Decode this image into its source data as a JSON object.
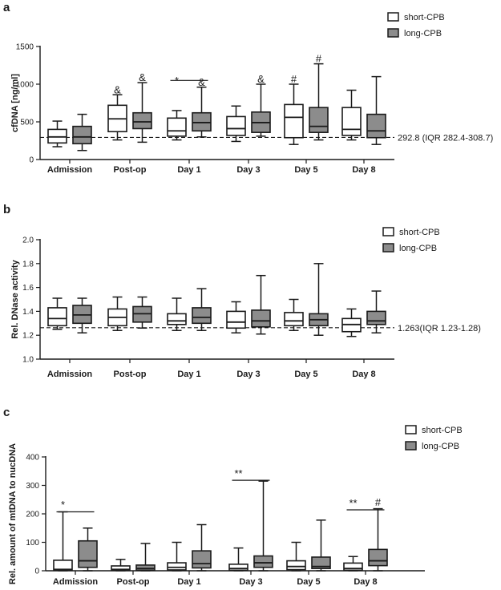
{
  "chart_data": [
    {
      "panel": "a",
      "type": "box",
      "ylabel": "cfDNA [ng/ml]",
      "ylim": [
        0,
        1500
      ],
      "yticks": [
        0,
        500,
        1000,
        1500
      ],
      "categories": [
        "Admission",
        "Post-op",
        "Day 1",
        "Day 3",
        "Day 5",
        "Day 8"
      ],
      "legend": [
        "short-CPB",
        "long-CPB"
      ],
      "reference_line": {
        "value": 292.8,
        "label": "292.8 (IQR 282.4-308.7)"
      },
      "series": [
        {
          "name": "short-CPB",
          "color": "#ffffff",
          "boxes": [
            {
              "min": 170,
              "q1": 220,
              "median": 300,
              "q3": 400,
              "max": 510
            },
            {
              "min": 260,
              "q1": 370,
              "median": 540,
              "q3": 720,
              "max": 860
            },
            {
              "min": 260,
              "q1": 310,
              "median": 380,
              "q3": 550,
              "max": 650
            },
            {
              "min": 240,
              "q1": 320,
              "median": 410,
              "q3": 570,
              "max": 710
            },
            {
              "min": 200,
              "q1": 290,
              "median": 560,
              "q3": 730,
              "max": 1000
            },
            {
              "min": 260,
              "q1": 320,
              "median": 400,
              "q3": 690,
              "max": 920
            }
          ]
        },
        {
          "name": "long-CPB",
          "color": "#8c8c8c",
          "boxes": [
            {
              "min": 120,
              "q1": 210,
              "median": 300,
              "q3": 440,
              "max": 600
            },
            {
              "min": 230,
              "q1": 410,
              "median": 500,
              "q3": 620,
              "max": 1020
            },
            {
              "min": 300,
              "q1": 380,
              "median": 490,
              "q3": 620,
              "max": 960
            },
            {
              "min": 310,
              "q1": 360,
              "median": 490,
              "q3": 630,
              "max": 1000
            },
            {
              "min": 260,
              "q1": 360,
              "median": 440,
              "q3": 690,
              "max": 1270
            },
            {
              "min": 200,
              "q1": 290,
              "median": 380,
              "q3": 600,
              "max": 1100
            }
          ]
        }
      ],
      "annotations": [
        {
          "text": "&",
          "category": 1,
          "series": 0,
          "value": 880
        },
        {
          "text": "&",
          "category": 1,
          "series": 1,
          "value": 1040
        },
        {
          "text": "*",
          "category": 2,
          "series": 0,
          "value": 1000
        },
        {
          "text": "&",
          "category": 2,
          "series": 1,
          "value": 980
        },
        {
          "text": "&",
          "category": 3,
          "series": 1,
          "value": 1020
        },
        {
          "text": "#",
          "category": 4,
          "series": 0,
          "value": 1020
        },
        {
          "text": "#",
          "category": 4,
          "series": 1,
          "value": 1290
        }
      ],
      "brackets": [
        {
          "category_from": 2,
          "series_from": 0,
          "category_to": 2,
          "series_to": 1,
          "value": 1050
        }
      ]
    },
    {
      "panel": "b",
      "type": "box",
      "ylabel": "Rel. DNase activity",
      "ylim": [
        1.0,
        2.0
      ],
      "yticks": [
        1.0,
        1.2,
        1.4,
        1.6,
        1.8,
        2.0
      ],
      "categories": [
        "Admission",
        "Post-op",
        "Day 1",
        "Day 3",
        "Day 5",
        "Day 8"
      ],
      "legend": [
        "short-CPB",
        "long-CPB"
      ],
      "reference_line": {
        "value": 1.263,
        "label": "1.263(IQR 1.23-1.28)"
      },
      "series": [
        {
          "name": "short-CPB",
          "color": "#ffffff",
          "boxes": [
            {
              "min": 1.25,
              "q1": 1.28,
              "median": 1.34,
              "q3": 1.43,
              "max": 1.51
            },
            {
              "min": 1.24,
              "q1": 1.28,
              "median": 1.35,
              "q3": 1.42,
              "max": 1.52
            },
            {
              "min": 1.24,
              "q1": 1.29,
              "median": 1.32,
              "q3": 1.38,
              "max": 1.51
            },
            {
              "min": 1.22,
              "q1": 1.26,
              "median": 1.31,
              "q3": 1.4,
              "max": 1.48
            },
            {
              "min": 1.24,
              "q1": 1.28,
              "median": 1.32,
              "q3": 1.39,
              "max": 1.5
            },
            {
              "min": 1.19,
              "q1": 1.23,
              "median": 1.29,
              "q3": 1.34,
              "max": 1.42
            }
          ]
        },
        {
          "name": "long-CPB",
          "color": "#8c8c8c",
          "boxes": [
            {
              "min": 1.22,
              "q1": 1.3,
              "median": 1.37,
              "q3": 1.45,
              "max": 1.51
            },
            {
              "min": 1.26,
              "q1": 1.31,
              "median": 1.38,
              "q3": 1.44,
              "max": 1.52
            },
            {
              "min": 1.24,
              "q1": 1.3,
              "median": 1.35,
              "q3": 1.43,
              "max": 1.59
            },
            {
              "min": 1.21,
              "q1": 1.27,
              "median": 1.32,
              "q3": 1.41,
              "max": 1.7
            },
            {
              "min": 1.2,
              "q1": 1.28,
              "median": 1.33,
              "q3": 1.38,
              "max": 1.8
            },
            {
              "min": 1.22,
              "q1": 1.29,
              "median": 1.32,
              "q3": 1.4,
              "max": 1.57
            }
          ]
        }
      ],
      "annotations": [],
      "brackets": []
    },
    {
      "panel": "c",
      "type": "box",
      "ylabel": "Rel. amount of mtDNA to nucDNA",
      "ylim": [
        0,
        400
      ],
      "yticks": [
        0,
        100,
        200,
        300,
        400
      ],
      "categories": [
        "Admission",
        "Post-op",
        "Day 1",
        "Day 3",
        "Day 5",
        "Day 8"
      ],
      "legend": [
        "short-CPB",
        "long-CPB"
      ],
      "reference_line": null,
      "series": [
        {
          "name": "short-CPB",
          "color": "#ffffff",
          "boxes": [
            {
              "min": 0,
              "q1": 2,
              "median": 5,
              "q3": 37,
              "max": 207
            },
            {
              "min": 0,
              "q1": 2,
              "median": 5,
              "q3": 17,
              "max": 40
            },
            {
              "min": 0,
              "q1": 3,
              "median": 12,
              "q3": 28,
              "max": 100
            },
            {
              "min": 0,
              "q1": 2,
              "median": 8,
              "q3": 23,
              "max": 80
            },
            {
              "min": 0,
              "q1": 4,
              "median": 15,
              "q3": 35,
              "max": 100
            },
            {
              "min": 0,
              "q1": 2,
              "median": 8,
              "q3": 27,
              "max": 50
            }
          ]
        },
        {
          "name": "long-CPB",
          "color": "#8c8c8c",
          "boxes": [
            {
              "min": 0,
              "q1": 12,
              "median": 35,
              "q3": 105,
              "max": 150
            },
            {
              "min": 0,
              "q1": 2,
              "median": 8,
              "q3": 20,
              "max": 96
            },
            {
              "min": 0,
              "q1": 10,
              "median": 25,
              "q3": 70,
              "max": 162
            },
            {
              "min": 0,
              "q1": 12,
              "median": 28,
              "q3": 52,
              "max": 315
            },
            {
              "min": 0,
              "q1": 8,
              "median": 15,
              "q3": 48,
              "max": 178
            },
            {
              "min": 0,
              "q1": 18,
              "median": 35,
              "q3": 75,
              "max": 218
            }
          ]
        }
      ],
      "annotations": [
        {
          "text": "*",
          "category": 0,
          "series": 0,
          "value": 220
        },
        {
          "text": "**",
          "category": 3,
          "series": 0,
          "value": 330
        },
        {
          "text": "**",
          "category": 5,
          "series": 0,
          "value": 226
        },
        {
          "text": "#",
          "category": 5,
          "series": 1,
          "value": 228
        }
      ],
      "brackets": [
        {
          "category_from": 0,
          "series_from": 0,
          "category_to": 0,
          "series_to": 1,
          "value": 207
        },
        {
          "category_from": 3,
          "series_from": 0,
          "category_to": 3,
          "series_to": 1,
          "value": 318
        },
        {
          "category_from": 5,
          "series_from": 0,
          "category_to": 5,
          "series_to": 1,
          "value": 214
        }
      ]
    }
  ]
}
